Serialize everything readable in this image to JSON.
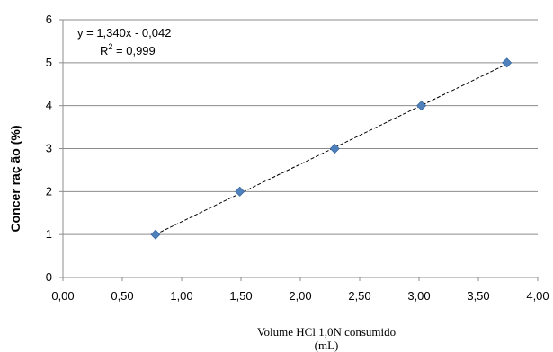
{
  "chart_data": {
    "type": "scatter",
    "x": [
      0.78,
      1.49,
      2.29,
      3.02,
      3.74
    ],
    "y": [
      1,
      2,
      3,
      4,
      5
    ],
    "marker_color": "#4F81BD",
    "xlim": [
      0,
      4
    ],
    "ylim": [
      0,
      6
    ],
    "x_ticks": [
      "0,00",
      "0,50",
      "1,00",
      "1,50",
      "2,00",
      "2,50",
      "3,00",
      "3,50",
      "4,00"
    ],
    "y_ticks": [
      "0",
      "1",
      "2",
      "3",
      "4",
      "5",
      "6"
    ],
    "xlabel_line1": "Volume HCl 1,0N consumido",
    "xlabel_line2": "(mL)",
    "ylabel": "Concer raç ão (%)",
    "trendline": {
      "type": "linear",
      "slope": 1.34,
      "intercept": -0.042,
      "equation": "y = 1,340x - 0,042",
      "r2_prefix": "R",
      "r2_sup": "2",
      "r2_value": " = 0,999"
    },
    "grid": {
      "horizontal": true,
      "vertical": false
    }
  }
}
